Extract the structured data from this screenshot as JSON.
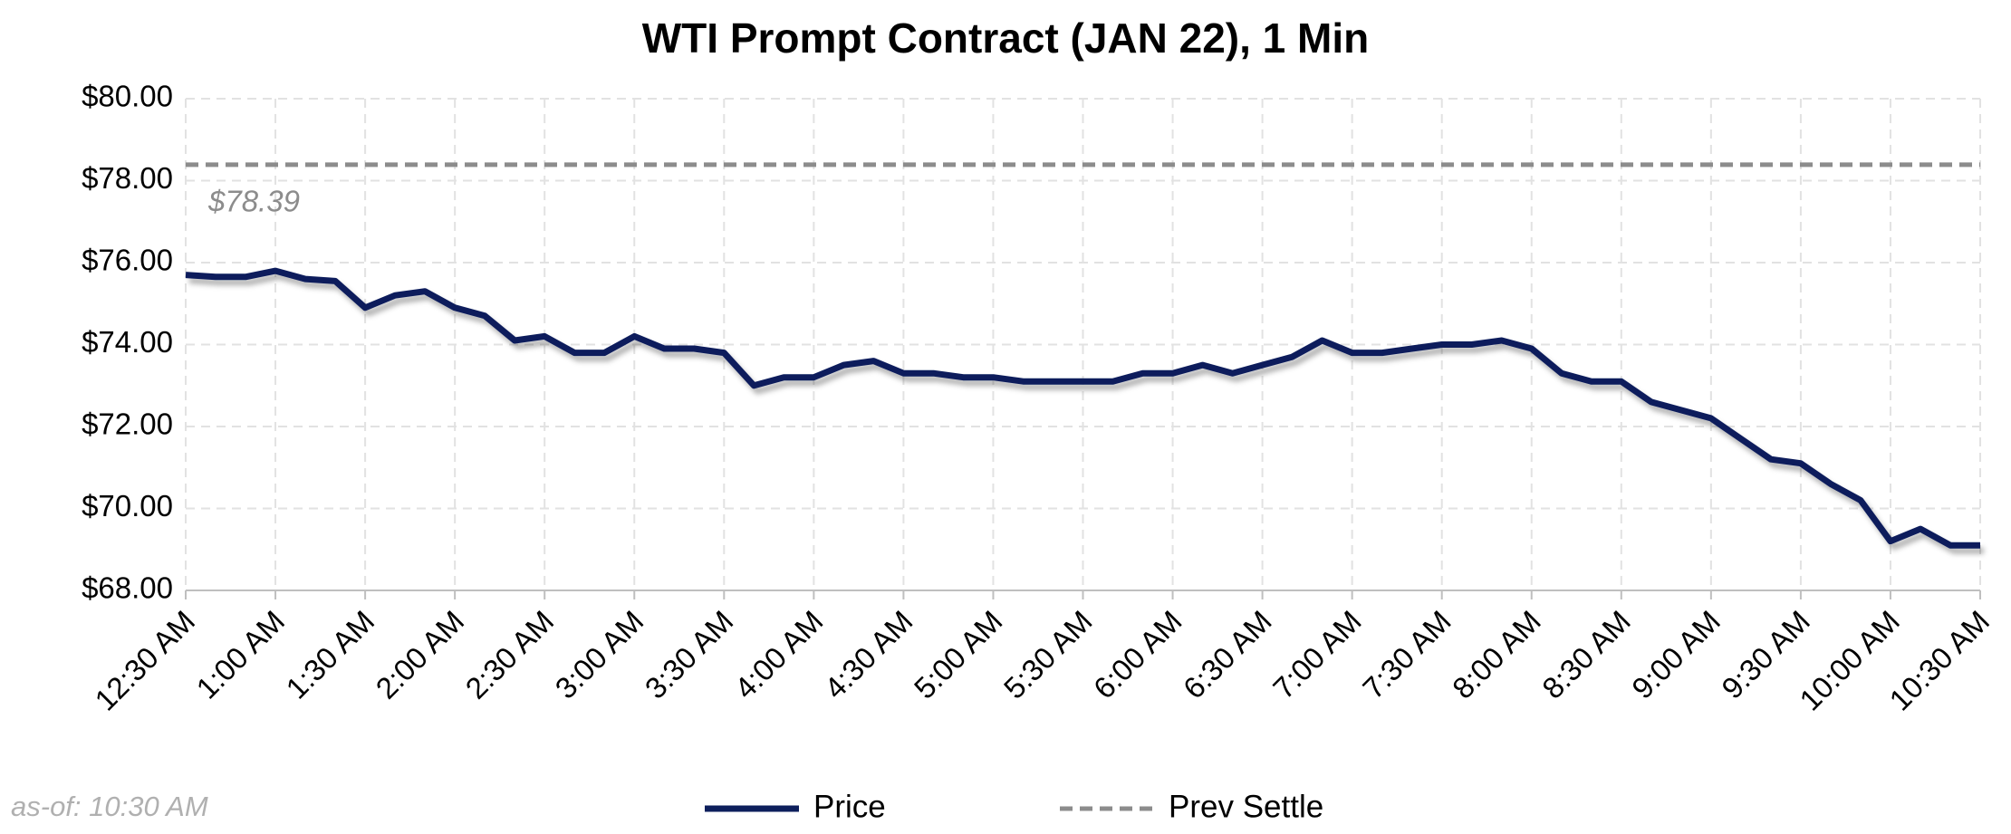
{
  "chart_data": {
    "type": "line",
    "title": "WTI Prompt Contract (JAN 22), 1 Min",
    "footnote": "as-of: 10:30 AM",
    "x": [
      "12:30 AM",
      "12:40 AM",
      "12:50 AM",
      "1:00 AM",
      "1:10 AM",
      "1:20 AM",
      "1:30 AM",
      "1:40 AM",
      "1:50 AM",
      "2:00 AM",
      "2:10 AM",
      "2:20 AM",
      "2:30 AM",
      "2:40 AM",
      "2:50 AM",
      "3:00 AM",
      "3:10 AM",
      "3:20 AM",
      "3:30 AM",
      "3:40 AM",
      "3:50 AM",
      "4:00 AM",
      "4:10 AM",
      "4:20 AM",
      "4:30 AM",
      "4:40 AM",
      "4:50 AM",
      "5:00 AM",
      "5:10 AM",
      "5:20 AM",
      "5:30 AM",
      "5:40 AM",
      "5:50 AM",
      "6:00 AM",
      "6:10 AM",
      "6:20 AM",
      "6:30 AM",
      "6:40 AM",
      "6:50 AM",
      "7:00 AM",
      "7:10 AM",
      "7:20 AM",
      "7:30 AM",
      "7:40 AM",
      "7:50 AM",
      "8:00 AM",
      "8:10 AM",
      "8:20 AM",
      "8:30 AM",
      "8:40 AM",
      "8:50 AM",
      "9:00 AM",
      "9:10 AM",
      "9:20 AM",
      "9:30 AM",
      "9:40 AM",
      "9:50 AM",
      "10:00 AM",
      "10:10 AM",
      "10:20 AM",
      "10:30 AM"
    ],
    "series": [
      {
        "name": "Price",
        "color": "#0d1f5c",
        "values": [
          75.7,
          75.65,
          75.65,
          75.8,
          75.6,
          75.55,
          74.9,
          75.2,
          75.3,
          74.9,
          74.7,
          74.1,
          74.2,
          73.8,
          73.8,
          74.2,
          73.9,
          73.9,
          73.8,
          73.0,
          73.2,
          73.2,
          73.5,
          73.6,
          73.3,
          73.3,
          73.2,
          73.2,
          73.1,
          73.1,
          73.1,
          73.1,
          73.3,
          73.3,
          73.5,
          73.3,
          73.5,
          73.7,
          74.1,
          73.8,
          73.8,
          73.9,
          74.0,
          74.0,
          74.1,
          73.9,
          73.3,
          73.1,
          73.1,
          72.6,
          72.4,
          72.2,
          71.7,
          71.2,
          71.1,
          70.6,
          70.2,
          69.2,
          69.5,
          69.1,
          69.1
        ]
      }
    ],
    "reference_line": {
      "name": "Prev Settle",
      "value": 78.39,
      "label": "$78.39",
      "color": "#8c8c8c",
      "style": "dashed"
    },
    "xticks": [
      "12:30 AM",
      "1:00 AM",
      "1:30 AM",
      "2:00 AM",
      "2:30 AM",
      "3:00 AM",
      "3:30 AM",
      "4:00 AM",
      "4:30 AM",
      "5:00 AM",
      "5:30 AM",
      "6:00 AM",
      "6:30 AM",
      "7:00 AM",
      "7:30 AM",
      "8:00 AM",
      "8:30 AM",
      "9:00 AM",
      "9:30 AM",
      "10:00 AM",
      "10:30 AM"
    ],
    "ylim": [
      68,
      80
    ],
    "yticks": [
      {
        "value": 68,
        "label": "$68.00"
      },
      {
        "value": 70,
        "label": "$70.00"
      },
      {
        "value": 72,
        "label": "$72.00"
      },
      {
        "value": 74,
        "label": "$74.00"
      },
      {
        "value": 76,
        "label": "$76.00"
      },
      {
        "value": 78,
        "label": "$78.00"
      },
      {
        "value": 80,
        "label": "$80.00"
      }
    ],
    "grid": true,
    "legend": "bottom"
  }
}
